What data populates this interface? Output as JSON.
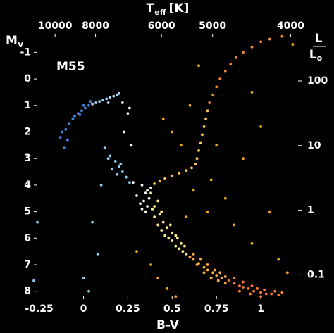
{
  "chart_data": {
    "type": "scatter",
    "annotation": "M55",
    "xlabel": "B-V",
    "ylabel": {
      "text": "M",
      "sub": "V"
    },
    "x2label": {
      "text": "T",
      "sub": "eff",
      "unit": "[K]"
    },
    "y2label": {
      "numerator": "L",
      "denominator": "L",
      "sub": "o"
    },
    "xlim": [
      -0.28,
      1.23
    ],
    "xticks": [
      -0.25,
      0,
      0.25,
      0.5,
      0.75,
      1
    ],
    "ylim": [
      8.3,
      -1.7
    ],
    "yticks": [
      -1,
      0,
      1,
      2,
      3,
      4,
      5,
      6,
      7,
      8
    ],
    "x2ticks": [
      {
        "value": -0.16,
        "label": "10000"
      },
      {
        "value": 0.068,
        "label": "8000"
      },
      {
        "value": 0.44,
        "label": "6000"
      },
      {
        "value": 0.728,
        "label": "5000"
      },
      {
        "value": 1.168,
        "label": "4000"
      }
    ],
    "y2lim": [
      0.042,
      537
    ],
    "y2log": true,
    "y2ticks": [
      0.1,
      1,
      10,
      100
    ],
    "background": "#000000",
    "series": [
      {
        "color": "#3f86dd",
        "x": [
          -0.12,
          -0.13,
          -0.1,
          -0.08,
          -0.06,
          -0.05,
          -0.03,
          -0.01,
          0.01,
          0.03,
          0.0,
          -0.02,
          -0.11,
          -0.09,
          0.04
        ],
        "values": [
          2.0,
          2.2,
          1.9,
          1.7,
          1.5,
          1.4,
          1.3,
          1.2,
          1.1,
          1.0,
          1.0,
          1.35,
          2.6,
          2.3,
          0.85
        ]
      },
      {
        "color": "#a7d3f2",
        "x": [
          0.05,
          0.07,
          0.09,
          0.11,
          0.13,
          0.15,
          0.17,
          0.19,
          0.2,
          0.14
        ],
        "values": [
          0.95,
          0.9,
          0.85,
          0.8,
          0.75,
          0.7,
          0.65,
          0.6,
          0.55,
          0.9
        ]
      },
      {
        "color": "#8ad0ee",
        "x": [
          0.12,
          0.15,
          0.18,
          0.2,
          0.22,
          0.16,
          0.24,
          0.14,
          0.19,
          0.26,
          0.21,
          0.1,
          0.05,
          -0.26,
          0.08,
          -0.28,
          0.0,
          0.03
        ],
        "values": [
          2.6,
          2.9,
          3.1,
          3.3,
          3.5,
          3.4,
          3.7,
          3.0,
          3.6,
          3.9,
          3.2,
          4.0,
          5.4,
          5.4,
          6.6,
          7.6,
          7.5,
          8.0
        ]
      },
      {
        "color": "#f4f4f0",
        "x": [
          0.33,
          0.35,
          0.34,
          0.36,
          0.33,
          0.37,
          0.35,
          0.32,
          0.36,
          0.38,
          0.3,
          0.28,
          0.25,
          0.26,
          0.22,
          0.27,
          0.23
        ],
        "values": [
          4.0,
          4.3,
          4.6,
          4.8,
          4.9,
          4.5,
          5.0,
          4.7,
          4.2,
          4.1,
          4.4,
          3.9,
          1.3,
          1.1,
          0.9,
          2.5,
          2.0
        ]
      },
      {
        "color": "#ffeb8a",
        "x": [
          0.38,
          0.4,
          0.42,
          0.44,
          0.46,
          0.48,
          0.5,
          0.52,
          0.54,
          0.56,
          0.58,
          0.4,
          0.43,
          0.45,
          0.47,
          0.5,
          0.53,
          0.55,
          0.57,
          0.42,
          0.39,
          0.44,
          0.49,
          0.52
        ],
        "values": [
          4.3,
          5.2,
          5.5,
          5.7,
          5.9,
          6.0,
          6.1,
          6.3,
          6.4,
          6.5,
          6.6,
          4.8,
          5.1,
          5.4,
          5.6,
          5.8,
          6.0,
          6.2,
          6.3,
          4.6,
          4.9,
          5.0,
          5.5,
          5.9
        ]
      },
      {
        "color": "#ffb040",
        "x": [
          0.6,
          0.62,
          0.65,
          0.68,
          0.7,
          0.73,
          0.75,
          0.78,
          0.62,
          0.66,
          0.7,
          0.74,
          0.77,
          0.8,
          0.64,
          0.68,
          0.72,
          0.76,
          0.8
        ],
        "values": [
          6.7,
          6.8,
          6.95,
          7.1,
          7.2,
          7.3,
          7.4,
          7.5,
          6.6,
          6.8,
          7.0,
          7.2,
          7.3,
          7.45,
          7.0,
          7.3,
          7.5,
          7.6,
          7.7
        ]
      },
      {
        "color": "#ff7a2a",
        "x": [
          0.82,
          0.85,
          0.88,
          0.9,
          0.93,
          0.96,
          1.0,
          1.03,
          1.06,
          1.1,
          0.85,
          0.9,
          0.95,
          0.98,
          1.02,
          1.08,
          1.12,
          0.88,
          0.94,
          1.0
        ],
        "values": [
          7.6,
          7.7,
          7.8,
          7.85,
          7.9,
          8.0,
          8.05,
          8.1,
          8.1,
          8.15,
          7.5,
          7.65,
          7.8,
          7.9,
          7.95,
          8.0,
          8.05,
          8.0,
          8.1,
          8.2
        ]
      },
      {
        "color": "#ffc850",
        "x": [
          0.4,
          0.43,
          0.46,
          0.5,
          0.54,
          0.58,
          0.61,
          0.63,
          0.64,
          0.65,
          0.66,
          0.67,
          0.68,
          0.69,
          0.7
        ],
        "values": [
          3.95,
          3.85,
          3.75,
          3.65,
          3.55,
          3.45,
          3.35,
          3.2,
          3.0,
          2.7,
          2.4,
          2.1,
          1.8,
          1.5,
          1.2
        ]
      },
      {
        "color": "#f08a30",
        "x": [
          0.71,
          0.73,
          0.75,
          0.77,
          0.8,
          0.83,
          0.86,
          0.9,
          0.95,
          1.0,
          1.05,
          1.12
        ],
        "values": [
          0.9,
          0.6,
          0.3,
          0.0,
          -0.3,
          -0.55,
          -0.8,
          -1.0,
          -1.2,
          -1.4,
          -1.5,
          -1.6
        ]
      },
      {
        "color": "#f5a623",
        "x": [
          0.55,
          0.6,
          0.65,
          0.72,
          0.8,
          0.85,
          0.9,
          0.95,
          1.05,
          1.1,
          1.15,
          0.7,
          0.62,
          0.5,
          0.45,
          0.75,
          1.0,
          1.18,
          0.95,
          0.58,
          0.52,
          0.47,
          0.42,
          0.3,
          0.38
        ],
        "values": [
          2.5,
          1.0,
          -0.5,
          3.8,
          4.5,
          5.5,
          3.0,
          6.2,
          5.0,
          6.8,
          7.3,
          5.0,
          4.2,
          2.0,
          1.5,
          2.5,
          1.8,
          -1.3,
          0.5,
          5.2,
          8.2,
          7.9,
          7.5,
          6.5,
          7.0
        ]
      }
    ]
  }
}
